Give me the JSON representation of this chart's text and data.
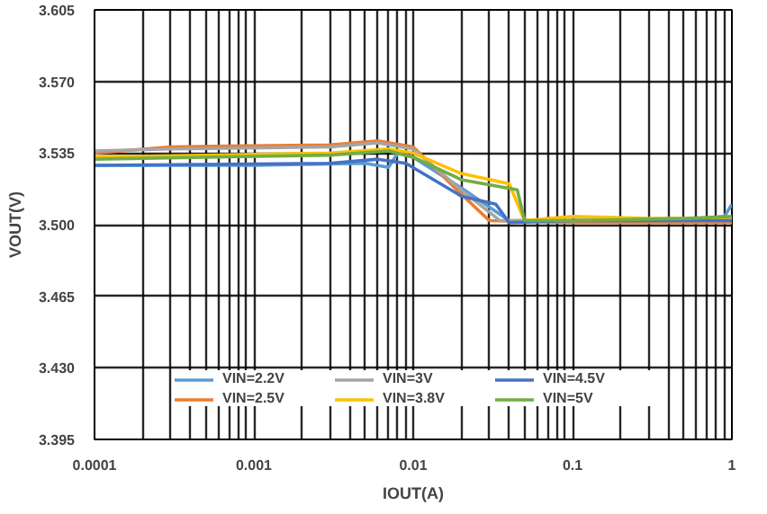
{
  "chart_data": {
    "type": "line",
    "xlabel": "IOUT(A)",
    "ylabel": "VOUT(V)",
    "log": "x",
    "grid": true,
    "legend": "bottom",
    "marker": "none",
    "line_style": "solid",
    "xlim": [
      0.0001,
      1
    ],
    "xticks": [
      0.0001,
      0.001,
      0.01,
      0.1,
      1
    ],
    "ylim": [
      3.395,
      3.605
    ],
    "yticks": [
      {
        "value": 3.395,
        "label": "3.395"
      },
      {
        "value": 3.43,
        "label": "3.430"
      },
      {
        "value": 3.465,
        "label": "3.465"
      },
      {
        "value": 3.5,
        "label": "3.500"
      },
      {
        "value": 3.535,
        "label": "3.535"
      },
      {
        "value": 3.57,
        "label": "3.570"
      },
      {
        "value": 3.605,
        "label": "3.605"
      }
    ],
    "series": [
      {
        "name": "VIN=2.2V",
        "color": "#5b9bd5",
        "x": [
          0.0001,
          0.001,
          0.005,
          0.007,
          0.008,
          0.01,
          0.02,
          0.04,
          0.1,
          0.5,
          0.9,
          1
        ],
        "values": [
          3.529,
          3.529,
          3.53,
          3.528,
          3.535,
          3.533,
          3.518,
          3.502,
          3.502,
          3.502,
          3.504,
          3.51
        ]
      },
      {
        "name": "VIN=2.5V",
        "color": "#ed7d31",
        "x": [
          0.0001,
          0.0003,
          0.003,
          0.006,
          0.01,
          0.02,
          0.03,
          0.1,
          1
        ],
        "values": [
          3.535,
          3.538,
          3.539,
          3.541,
          3.538,
          3.515,
          3.502,
          3.501,
          3.501
        ]
      },
      {
        "name": "VIN=3V",
        "color": "#a5a5a5",
        "x": [
          0.0001,
          0.0003,
          0.003,
          0.006,
          0.01,
          0.02,
          0.035,
          0.1,
          1
        ],
        "values": [
          3.536,
          3.537,
          3.538,
          3.54,
          3.537,
          3.517,
          3.502,
          3.502,
          3.502
        ]
      },
      {
        "name": "VIN=3.8V",
        "color": "#ffc000",
        "x": [
          0.0001,
          0.003,
          0.007,
          0.01,
          0.02,
          0.04,
          0.05,
          0.1,
          0.3,
          1
        ],
        "values": [
          3.533,
          3.535,
          3.537,
          3.535,
          3.525,
          3.52,
          3.502,
          3.504,
          3.503,
          3.503
        ]
      },
      {
        "name": "VIN=4.5V",
        "color": "#4472c4",
        "x": [
          0.0001,
          0.003,
          0.006,
          0.009,
          0.02,
          0.033,
          0.04,
          0.1,
          1
        ],
        "values": [
          3.529,
          3.53,
          3.532,
          3.53,
          3.514,
          3.51,
          3.501,
          3.502,
          3.502
        ]
      },
      {
        "name": "VIN=5V",
        "color": "#70ad47",
        "x": [
          0.0001,
          0.003,
          0.007,
          0.01,
          0.02,
          0.045,
          0.05,
          0.1,
          0.5,
          1
        ],
        "values": [
          3.532,
          3.534,
          3.536,
          3.533,
          3.522,
          3.517,
          3.502,
          3.502,
          3.503,
          3.504
        ]
      }
    ]
  }
}
